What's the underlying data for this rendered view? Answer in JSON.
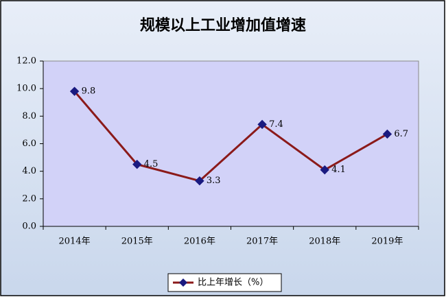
{
  "chart_data": {
    "type": "line",
    "title": "规模以上工业增加值增速",
    "categories": [
      "2014年",
      "2015年",
      "2016年",
      "2017年",
      "2018年",
      "2019年"
    ],
    "series": [
      {
        "name": "比上年增长（%）",
        "color": "#8b1a1a",
        "marker_color": "#1a1a80",
        "values": [
          9.8,
          4.5,
          3.3,
          7.4,
          4.1,
          6.7
        ]
      }
    ],
    "ylim": [
      0,
      12
    ],
    "yticks": [
      {
        "value": 0,
        "label": "0.0"
      },
      {
        "value": 2,
        "label": "2.0"
      },
      {
        "value": 4,
        "label": "4.0"
      },
      {
        "value": 6,
        "label": "6.0"
      },
      {
        "value": 8,
        "label": "8.0"
      },
      {
        "value": 10,
        "label": "10.0"
      },
      {
        "value": 12,
        "label": "12.0"
      }
    ],
    "grid": false,
    "legend": "bottom"
  }
}
